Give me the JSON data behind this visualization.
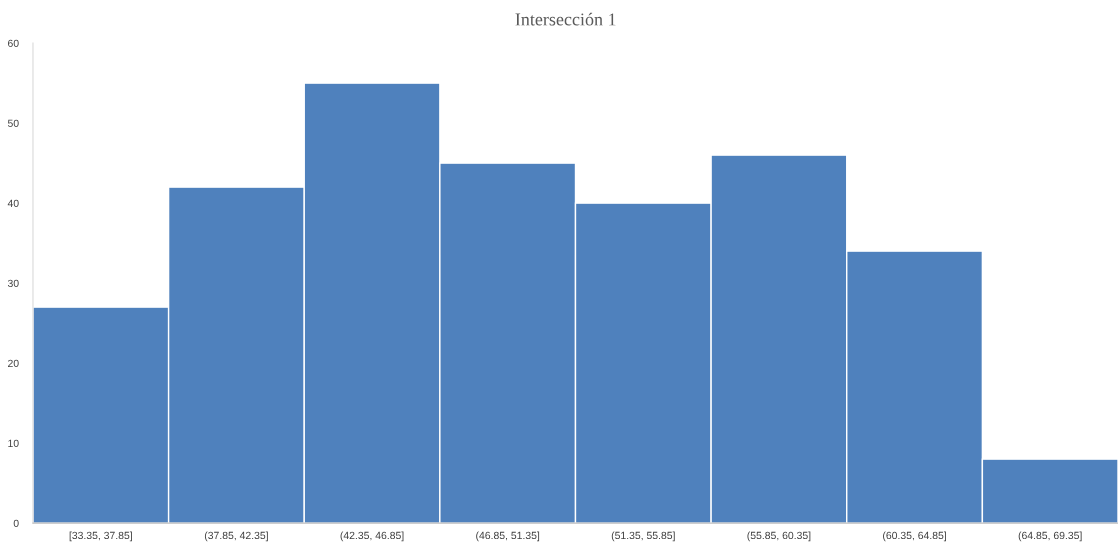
{
  "chart_data": {
    "type": "bar",
    "title": "Intersección 1",
    "categories": [
      "[33.35, 37.85]",
      "(37.85, 42.35]",
      "(42.35, 46.85]",
      "(46.85, 51.35]",
      "(51.35, 55.85]",
      "(55.85, 60.35]",
      "(60.35, 64.85]",
      "(64.85, 69.35]"
    ],
    "values": [
      27,
      42,
      55,
      45,
      40,
      46,
      34,
      8
    ],
    "color": "#4f81bd",
    "ylim": [
      0,
      60
    ],
    "yticks": [
      0,
      10,
      20,
      30,
      40,
      50,
      60
    ],
    "grid": false,
    "legend": false
  }
}
